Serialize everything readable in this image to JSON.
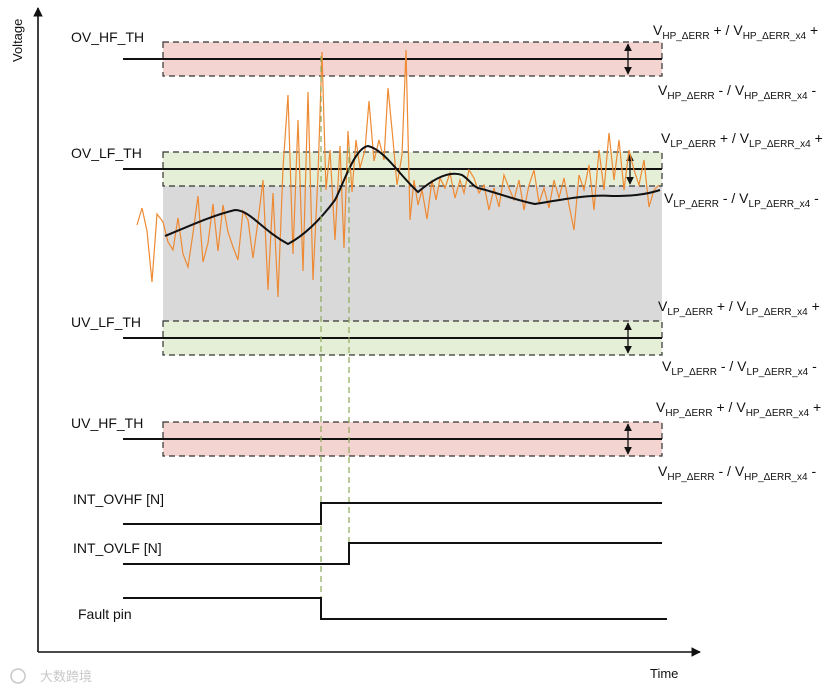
{
  "axes": {
    "y_label": "Voltage",
    "x_label": "Time"
  },
  "thresholds": {
    "ov_hf": "OV_HF_TH",
    "ov_lf": "OV_LF_TH",
    "uv_lf": "UV_LF_TH",
    "uv_hf": "UV_HF_TH"
  },
  "tolerance_labels": {
    "hp": {
      "main": "V",
      "sub1": "HP_ΔERR",
      "sub2": "HP_ΔERR_x4",
      "plus_sign": "+",
      "minus_sign": "-",
      "sep": " / "
    },
    "lp": {
      "main": "V",
      "sub1": "LP_ΔERR",
      "sub2": "LP_ΔERR_x4",
      "plus_sign": "+",
      "minus_sign": "-",
      "sep": " / "
    }
  },
  "signals": {
    "int_ovhf": "INT_OVHF [N]",
    "int_ovlf": "INT_OVLF [N]",
    "fault_pin": "Fault pin"
  },
  "watermark": "大数跨境",
  "colors": {
    "hf_band": "#f3d4d1",
    "lf_band": "#e5efd8",
    "region": "#d9d9d9",
    "noisy_signal": "#ee8a33",
    "filtered_signal": "#111111",
    "guide_line": "#8eaa5a"
  }
}
